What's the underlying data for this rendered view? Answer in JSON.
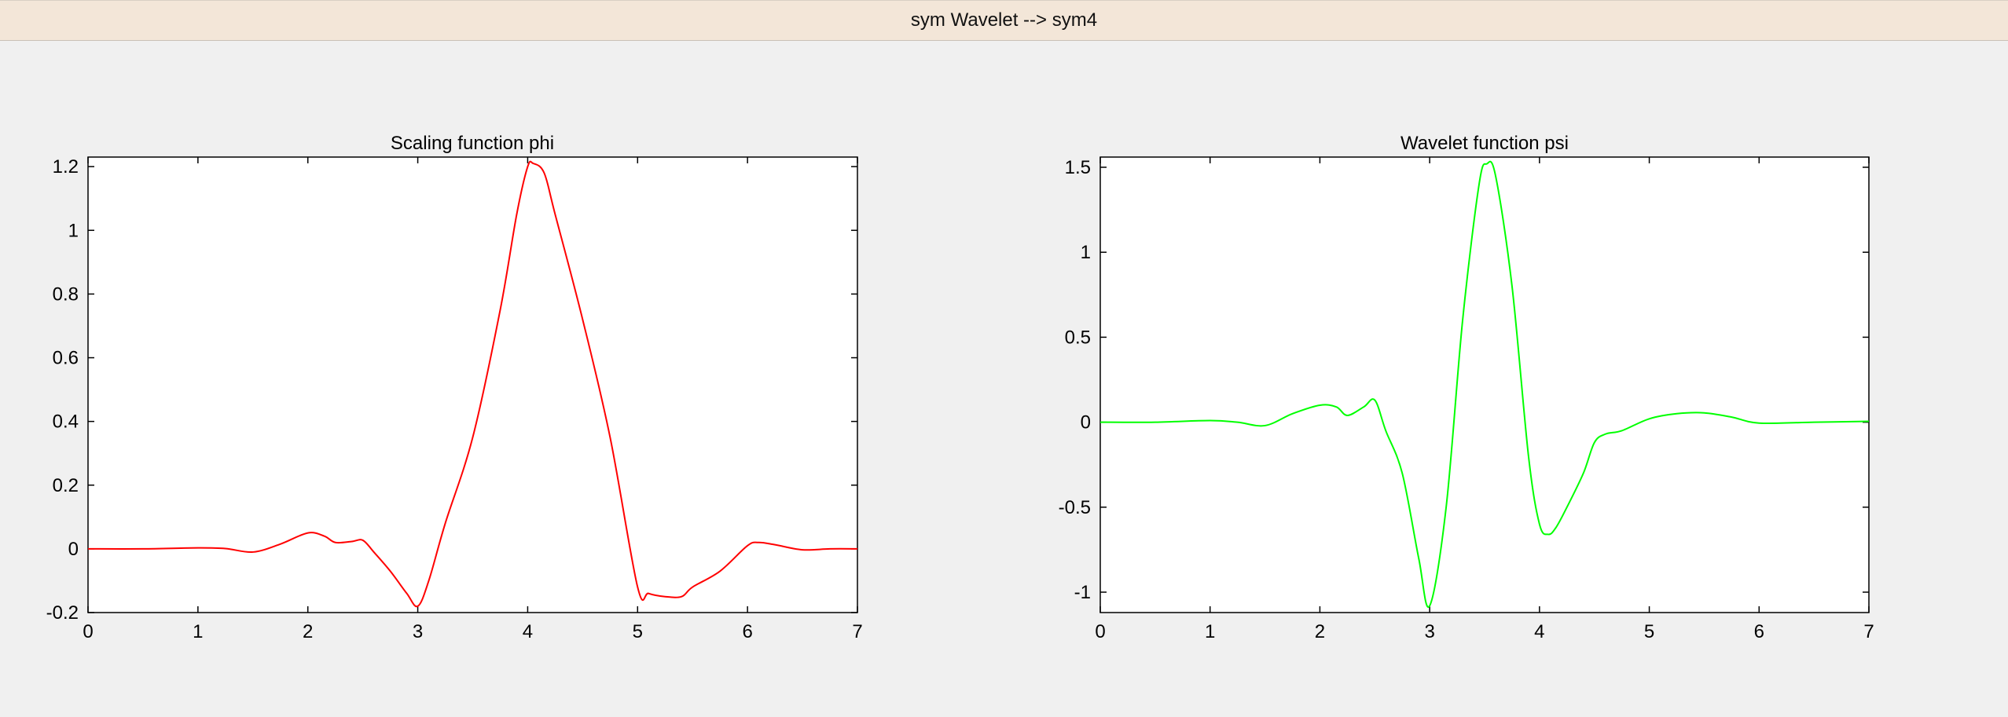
{
  "window": {
    "title": "sym Wavelet -->  sym4"
  },
  "chart_data": [
    {
      "type": "line",
      "title": "Scaling function phi",
      "xlabel": "",
      "ylabel": "",
      "xlim": [
        0,
        7
      ],
      "ylim": [
        -0.2,
        1.23
      ],
      "xticks": [
        0,
        1,
        2,
        3,
        4,
        5,
        6,
        7
      ],
      "yticks": [
        -0.2,
        0,
        0.2,
        0.4,
        0.6,
        0.8,
        1,
        1.2
      ],
      "ytick_labels": [
        "-0.2",
        "0",
        "0.2",
        "0.4",
        "0.6",
        "0.8",
        "1",
        "1.2"
      ],
      "grid": false,
      "color": "#ff0000",
      "series": [
        {
          "x": [
            0,
            0.5,
            1.0,
            1.25,
            1.5,
            1.75,
            2.0,
            2.15,
            2.25,
            2.4,
            2.5,
            2.6,
            2.75,
            2.9,
            3.0,
            3.1,
            3.25,
            3.5,
            3.75,
            3.9,
            4.0,
            4.05,
            4.15,
            4.25,
            4.5,
            4.75,
            5.0,
            5.1,
            5.25,
            5.4,
            5.5,
            5.75,
            6.0,
            6.1,
            6.25,
            6.5,
            6.75,
            7.0
          ],
          "y": [
            0,
            0,
            0.003,
            0.001,
            -0.01,
            0.015,
            0.05,
            0.04,
            0.02,
            0.023,
            0.027,
            -0.01,
            -0.07,
            -0.14,
            -0.18,
            -0.1,
            0.08,
            0.35,
            0.75,
            1.05,
            1.2,
            1.21,
            1.18,
            1.05,
            0.72,
            0.35,
            -0.12,
            -0.14,
            -0.15,
            -0.15,
            -0.12,
            -0.07,
            0.01,
            0.02,
            0.013,
            -0.003,
            0,
            0
          ]
        }
      ]
    },
    {
      "type": "line",
      "title": "Wavelet function psi",
      "xlabel": "",
      "ylabel": "",
      "xlim": [
        0,
        7
      ],
      "ylim": [
        -1.12,
        1.56
      ],
      "xticks": [
        0,
        1,
        2,
        3,
        4,
        5,
        6,
        7
      ],
      "yticks": [
        -1,
        -0.5,
        0,
        0.5,
        1,
        1.5
      ],
      "ytick_labels": [
        "-1",
        "-0.5",
        "0",
        "0.5",
        "1",
        "1.5"
      ],
      "grid": false,
      "color": "#00ff00",
      "series": [
        {
          "x": [
            0,
            0.5,
            1.0,
            1.25,
            1.5,
            1.75,
            2.0,
            2.15,
            2.25,
            2.4,
            2.5,
            2.6,
            2.75,
            2.9,
            3.0,
            3.15,
            3.3,
            3.45,
            3.52,
            3.6,
            3.75,
            3.9,
            4.0,
            4.08,
            4.15,
            4.25,
            4.4,
            4.5,
            4.6,
            4.75,
            5.0,
            5.25,
            5.5,
            5.75,
            6.0,
            6.5,
            7.0
          ],
          "y": [
            0,
            0,
            0.01,
            0,
            -0.02,
            0.05,
            0.1,
            0.09,
            0.04,
            0.09,
            0.13,
            -0.05,
            -0.3,
            -0.8,
            -1.08,
            -0.5,
            0.6,
            1.4,
            1.52,
            1.45,
            0.8,
            -0.2,
            -0.6,
            -0.66,
            -0.62,
            -0.5,
            -0.3,
            -0.12,
            -0.07,
            -0.05,
            0.02,
            0.05,
            0.055,
            0.03,
            -0.005,
            0,
            0.005
          ]
        }
      ]
    }
  ]
}
